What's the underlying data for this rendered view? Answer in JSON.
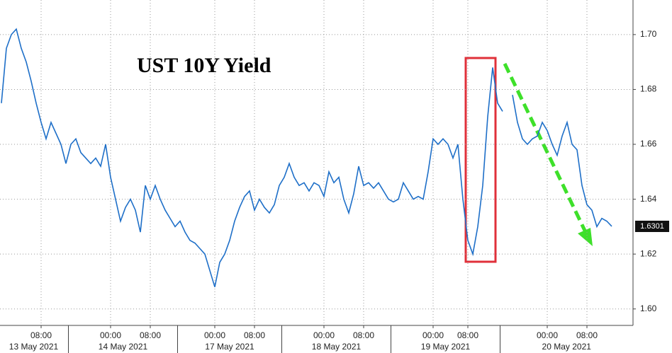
{
  "chart_data": {
    "type": "line",
    "title": "UST 10Y Yield",
    "categories": [
      null,
      null,
      null,
      null,
      null,
      null,
      null,
      null,
      "08:00",
      null,
      null,
      null,
      null,
      null,
      null,
      null,
      null,
      null,
      null,
      null,
      null,
      null,
      "00:00",
      null,
      null,
      null,
      null,
      null,
      null,
      null,
      "08:00",
      null,
      null,
      null,
      null,
      null,
      null,
      null,
      null,
      null,
      null,
      null,
      null,
      "00:00",
      null,
      null,
      null,
      null,
      null,
      null,
      null,
      "08:00",
      null,
      null,
      null,
      null,
      null,
      null,
      null,
      null,
      null,
      null,
      null,
      null,
      null,
      "00:00",
      null,
      null,
      null,
      null,
      null,
      null,
      null,
      "08:00",
      null,
      null,
      null,
      null,
      null,
      null,
      null,
      null,
      null,
      null,
      null,
      null,
      null,
      "00:00",
      null,
      null,
      null,
      null,
      null,
      null,
      "08:00",
      null,
      null,
      null,
      null,
      null,
      null,
      null,
      null,
      null,
      null,
      null,
      null,
      null,
      null,
      null,
      "00:00",
      null,
      null,
      null,
      null,
      null,
      null,
      null,
      "08:00",
      null,
      null,
      null,
      null,
      null
    ],
    "day_labels": [
      {
        "value": 0,
        "label": "13 May 2021"
      },
      {
        "value": 14,
        "label": "14 May 2021"
      },
      {
        "value": 36,
        "label": "17 May 2021"
      },
      {
        "value": 57,
        "label": "18 May 2021"
      },
      {
        "value": 79,
        "label": "19 May 2021"
      },
      {
        "value": 101,
        "label": "20 May 2021"
      }
    ],
    "series": [
      {
        "color": "#1e6fc8",
        "values": [
          1.675,
          1.695,
          1.7,
          1.702,
          1.695,
          1.69,
          1.683,
          1.675,
          1.668,
          1.662,
          1.668,
          1.664,
          1.66,
          1.653,
          1.66,
          1.662,
          1.657,
          1.655,
          1.653,
          1.655,
          1.652,
          1.66,
          1.648,
          1.64,
          1.632,
          1.637,
          1.64,
          1.636,
          1.628,
          1.645,
          1.64,
          1.645,
          1.64,
          1.636,
          1.633,
          1.63,
          1.632,
          1.628,
          1.625,
          1.624,
          1.622,
          1.62,
          1.614,
          1.608,
          1.617,
          1.62,
          1.625,
          1.632,
          1.637,
          1.641,
          1.643,
          1.636,
          1.64,
          1.637,
          1.635,
          1.638,
          1.645,
          1.648,
          1.653,
          1.648,
          1.645,
          1.646,
          1.643,
          1.646,
          1.645,
          1.641,
          1.65,
          1.646,
          1.648,
          1.64,
          1.635,
          1.642,
          1.652,
          1.645,
          1.646,
          1.644,
          1.646,
          1.643,
          1.64,
          1.639,
          1.64,
          1.646,
          1.643,
          1.64,
          1.641,
          1.64,
          1.65,
          1.662,
          1.66,
          1.662,
          1.66,
          1.655,
          1.66,
          1.64,
          1.625,
          1.62,
          1.63,
          1.645,
          1.67,
          1.688,
          1.675,
          1.672,
          null,
          1.678,
          1.668,
          1.662,
          1.66,
          1.662,
          1.663,
          1.668,
          1.665,
          1.66,
          1.656,
          1.663,
          1.668,
          1.66,
          1.658,
          1.645,
          1.638,
          1.636,
          1.63,
          1.633,
          1.632,
          1.6301
        ]
      }
    ],
    "ylim": [
      1.594,
      1.7126
    ],
    "yticks": [
      {
        "value": 1.6,
        "label": "1.60"
      },
      1.62,
      1.64,
      1.66,
      1.68,
      {
        "value": 1.7,
        "label": "1.70"
      }
    ],
    "grid": true
  }
}
